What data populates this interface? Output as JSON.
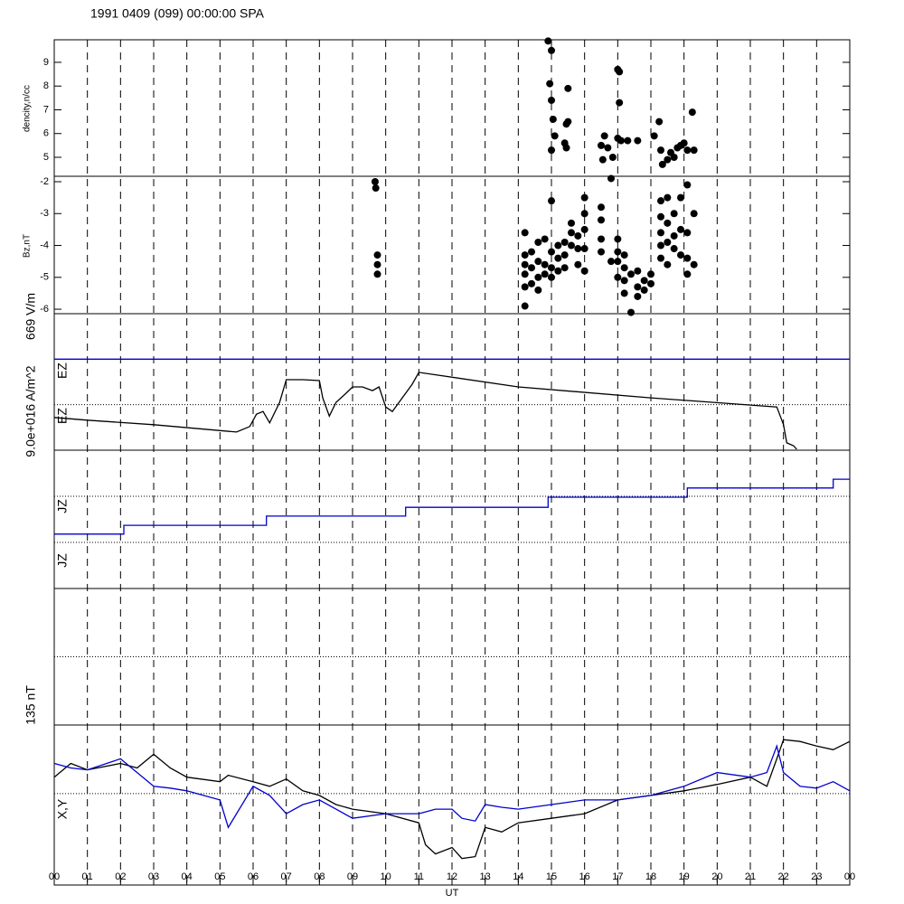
{
  "header": {
    "title": "1991 0409 (099) 00:00:00 SPA"
  },
  "axis": {
    "x_label": "UT",
    "xlim": [
      0,
      24
    ],
    "xticks": [
      {
        "value": 0,
        "label": "00"
      },
      {
        "value": 1,
        "label": "01"
      },
      {
        "value": 2,
        "label": "02"
      },
      {
        "value": 3,
        "label": "03"
      },
      {
        "value": 4,
        "label": "04"
      },
      {
        "value": 5,
        "label": "05"
      },
      {
        "value": 6,
        "label": "06"
      },
      {
        "value": 7,
        "label": "07"
      },
      {
        "value": 8,
        "label": "08"
      },
      {
        "value": 9,
        "label": "09"
      },
      {
        "value": 10,
        "label": "10"
      },
      {
        "value": 11,
        "label": "11"
      },
      {
        "value": 12,
        "label": "12"
      },
      {
        "value": 13,
        "label": "13"
      },
      {
        "value": 14,
        "label": "14"
      },
      {
        "value": 15,
        "label": "15"
      },
      {
        "value": 16,
        "label": "16"
      },
      {
        "value": 17,
        "label": "17"
      },
      {
        "value": 18,
        "label": "18"
      },
      {
        "value": 19,
        "label": "19"
      },
      {
        "value": 20,
        "label": "20"
      },
      {
        "value": 21,
        "label": "21"
      },
      {
        "value": 22,
        "label": "22"
      },
      {
        "value": 23,
        "label": "23"
      },
      {
        "value": 24,
        "label": "00"
      }
    ]
  },
  "chart_data": [
    {
      "type": "scatter",
      "y_label": "dencity,n/cc",
      "ylim": [
        4.2,
        9.95
      ],
      "yticks": [
        5,
        6,
        7,
        8,
        9
      ],
      "color": "#000000",
      "x": [
        14.9,
        15.0,
        14.95,
        15.0,
        15.05,
        15.1,
        15.0,
        15.5,
        15.5,
        15.45,
        15.4,
        15.45,
        16.5,
        16.55,
        16.6,
        16.7,
        16.85,
        17.0,
        17.05,
        17.05,
        17.0,
        17.1,
        17.3,
        17.6,
        18.1,
        18.25,
        18.3,
        18.35,
        18.5,
        18.6,
        18.7,
        18.8,
        18.9,
        19.0,
        19.1,
        19.25,
        19.3
      ],
      "values": [
        9.9,
        9.5,
        8.1,
        7.4,
        6.6,
        5.9,
        5.3,
        7.9,
        6.5,
        6.4,
        5.6,
        5.4,
        5.5,
        4.9,
        5.9,
        5.4,
        5.0,
        8.7,
        8.6,
        7.3,
        5.8,
        5.7,
        5.7,
        5.7,
        5.9,
        6.5,
        5.3,
        4.7,
        4.9,
        5.2,
        5.0,
        5.4,
        5.5,
        5.6,
        5.3,
        6.9,
        5.3
      ]
    },
    {
      "type": "scatter",
      "y_label": "Bz,nT",
      "ylim": [
        -6.14,
        -1.83
      ],
      "yticks": [
        -2,
        -3,
        -4,
        -5,
        -6
      ],
      "color": "#000000",
      "x": [
        9.68,
        9.7,
        9.75,
        9.75,
        9.75,
        14.2,
        14.2,
        14.2,
        14.2,
        14.2,
        14.2,
        14.4,
        14.4,
        14.4,
        14.6,
        14.6,
        14.6,
        14.6,
        14.8,
        14.8,
        14.8,
        15.0,
        15.0,
        15.0,
        15.0,
        15.2,
        15.2,
        15.2,
        15.4,
        15.4,
        15.4,
        15.6,
        15.6,
        15.6,
        15.8,
        15.8,
        15.8,
        16.0,
        16.0,
        16.0,
        16.0,
        16.0,
        16.5,
        16.5,
        16.5,
        16.5,
        16.8,
        16.8,
        17.0,
        17.0,
        17.0,
        17.0,
        17.2,
        17.2,
        17.2,
        17.2,
        17.4,
        17.4,
        17.6,
        17.6,
        17.6,
        17.8,
        17.8,
        18.0,
        18.0,
        18.3,
        18.3,
        18.3,
        18.3,
        18.3,
        18.5,
        18.5,
        18.5,
        18.5,
        18.7,
        18.7,
        18.7,
        18.9,
        18.9,
        18.9,
        19.1,
        19.1,
        19.1,
        19.1,
        19.3,
        19.3
      ],
      "values": [
        -2.0,
        -2.2,
        -4.3,
        -4.6,
        -4.9,
        -4.9,
        -5.3,
        -5.9,
        -4.6,
        -4.3,
        -3.6,
        -4.2,
        -4.7,
        -5.2,
        -3.9,
        -4.5,
        -5.0,
        -5.4,
        -4.6,
        -4.9,
        -3.8,
        -2.6,
        -4.2,
        -4.7,
        -5.0,
        -4.0,
        -4.4,
        -4.8,
        -3.9,
        -4.3,
        -4.7,
        -3.6,
        -4.0,
        -3.3,
        -3.7,
        -4.1,
        -4.6,
        -2.5,
        -3.0,
        -3.5,
        -4.1,
        -4.8,
        -3.8,
        -2.8,
        -3.2,
        -4.2,
        -1.9,
        -4.5,
        -3.8,
        -4.2,
        -4.5,
        -5.0,
        -4.3,
        -4.7,
        -5.1,
        -5.5,
        -4.9,
        -6.1,
        -4.8,
        -5.3,
        -5.6,
        -5.1,
        -5.4,
        -4.9,
        -5.2,
        -2.6,
        -3.1,
        -3.6,
        -4.0,
        -4.4,
        -2.5,
        -3.3,
        -3.9,
        -4.6,
        -3.0,
        -3.7,
        -4.1,
        -2.5,
        -3.5,
        -4.3,
        -2.1,
        -3.6,
        -4.4,
        -4.9,
        -3.0,
        -4.6
      ]
    },
    {
      "type": "line",
      "labels": [
        "669 V/m",
        "EZ",
        "EZ"
      ],
      "ylim": [
        0,
        3
      ],
      "reflines": [
        1,
        2
      ],
      "series": [
        {
          "color": "#0000cc",
          "x": [
            0,
            24
          ],
          "values": [
            2,
            2
          ]
        },
        {
          "color": "#000000",
          "x": [
            0,
            1,
            3,
            5.5,
            5.9,
            6.1,
            6.3,
            6.5,
            6.8,
            7,
            7.5,
            8,
            8.1,
            8.3,
            8.5,
            8.8,
            9,
            9.3,
            9.6,
            9.8,
            10,
            10.2,
            10.5,
            10.8,
            11,
            14,
            18,
            21.8,
            22,
            22.1,
            22.3,
            22.4
          ],
          "values": [
            0.72,
            0.66,
            0.56,
            0.4,
            0.52,
            0.79,
            0.85,
            0.6,
            1.05,
            1.55,
            1.55,
            1.53,
            1.15,
            0.75,
            1.05,
            1.25,
            1.39,
            1.39,
            1.31,
            1.39,
            0.95,
            0.85,
            1.15,
            1.45,
            1.71,
            1.39,
            1.15,
            0.95,
            0.56,
            0.16,
            0.1,
            0.02
          ]
        }
      ]
    },
    {
      "type": "line",
      "labels": [
        "9.0e+016 A/m^2",
        "JZ",
        "JZ"
      ],
      "ylim": [
        -1,
        2
      ],
      "reflines": [
        1,
        0
      ],
      "series": [
        {
          "color": "#0000cc",
          "x": [
            0,
            2.1,
            2.1,
            6.4,
            6.4,
            10.6,
            10.6,
            14.9,
            14.9,
            19.1,
            19.1,
            23.5,
            23.5,
            24
          ],
          "values": [
            0.18,
            0.18,
            0.37,
            0.37,
            0.57,
            0.57,
            0.76,
            0.76,
            0.98,
            0.98,
            1.18,
            1.18,
            1.37,
            1.37
          ]
        }
      ]
    },
    {
      "type": "line",
      "ylim": [
        -1,
        1
      ],
      "reflines": [
        0
      ],
      "series": []
    },
    {
      "type": "line",
      "labels": [
        "135 nT",
        "X,Y"
      ],
      "ylim": [
        -1.0,
        0.75
      ],
      "reflines": [
        0
      ],
      "series": [
        {
          "color": "#000000",
          "x": [
            0,
            0.5,
            1,
            2,
            2.5,
            3,
            3.5,
            4,
            5,
            5.25,
            6,
            6.5,
            7,
            7.5,
            8,
            8.5,
            9,
            10,
            11,
            11.2,
            11.5,
            12,
            12.3,
            12.7,
            13,
            13.5,
            14,
            15,
            16,
            17,
            18,
            19,
            20,
            21,
            21.5,
            21.8,
            22,
            22.5,
            23,
            23.5,
            24
          ],
          "values": [
            0.18,
            0.33,
            0.26,
            0.33,
            0.28,
            0.43,
            0.28,
            0.18,
            0.13,
            0.2,
            0.13,
            0.08,
            0.16,
            0.03,
            -0.02,
            -0.12,
            -0.17,
            -0.22,
            -0.32,
            -0.56,
            -0.66,
            -0.59,
            -0.71,
            -0.69,
            -0.37,
            -0.42,
            -0.32,
            -0.27,
            -0.22,
            -0.07,
            -0.02,
            0.03,
            0.1,
            0.18,
            0.08,
            0.38,
            0.59,
            0.57,
            0.52,
            0.48,
            0.57
          ]
        },
        {
          "color": "#0000cc",
          "x": [
            0,
            0.5,
            1,
            2,
            2.5,
            3,
            3.5,
            4,
            5,
            5.25,
            6,
            6.5,
            7,
            7.5,
            8,
            8.5,
            9,
            10,
            11,
            11.2,
            11.5,
            12,
            12.3,
            12.7,
            13,
            13.5,
            14,
            15,
            16,
            17,
            18,
            19,
            20,
            21,
            21.5,
            21.8,
            22,
            22.5,
            23,
            23.5,
            24
          ],
          "values": [
            0.33,
            0.28,
            0.26,
            0.38,
            0.23,
            0.08,
            0.06,
            0.03,
            -0.07,
            -0.37,
            0.08,
            -0.02,
            -0.22,
            -0.12,
            -0.07,
            -0.17,
            -0.27,
            -0.22,
            -0.22,
            -0.2,
            -0.17,
            -0.17,
            -0.27,
            -0.3,
            -0.12,
            -0.15,
            -0.17,
            -0.12,
            -0.07,
            -0.07,
            -0.02,
            0.08,
            0.23,
            0.18,
            0.23,
            0.52,
            0.23,
            0.08,
            0.06,
            0.13,
            0.03
          ]
        }
      ]
    }
  ]
}
